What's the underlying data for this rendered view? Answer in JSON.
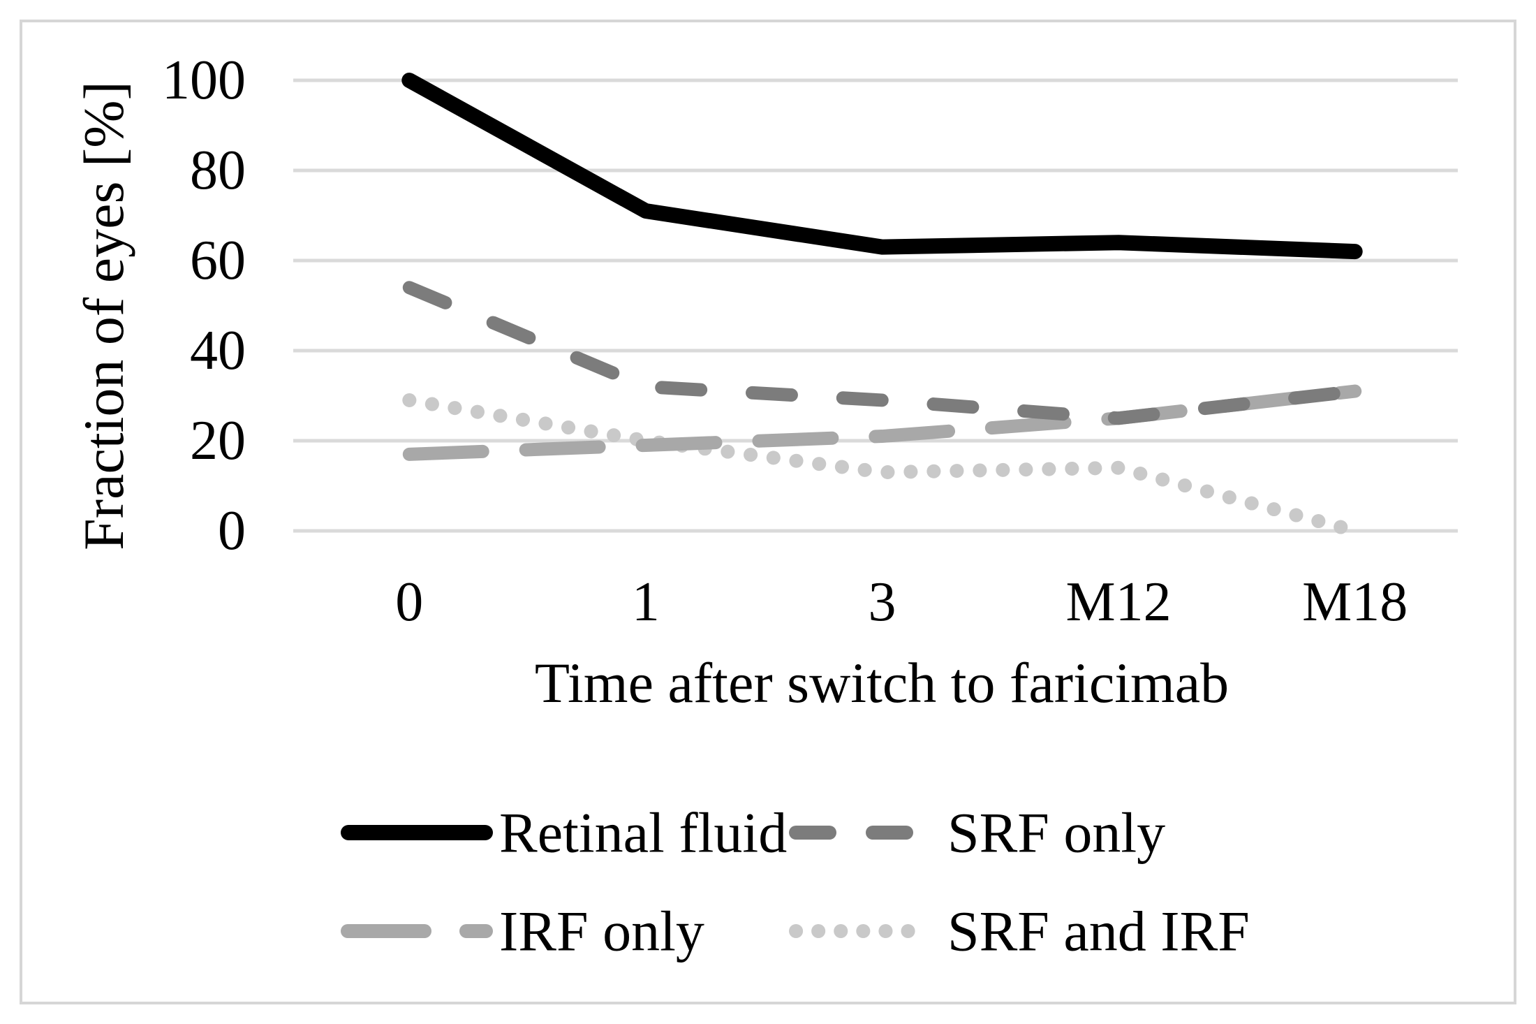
{
  "figure": {
    "background": "#ffffff",
    "border_color": "#d6d6d6",
    "gridline_color": "#dadada"
  },
  "chart_data": {
    "type": "line",
    "title": "",
    "xlabel": "Time after switch to faricimab",
    "ylabel": "Fraction of eyes [%]",
    "categories": [
      "0",
      "1",
      "3",
      "M12",
      "M18"
    ],
    "y_ticks": [
      100,
      80,
      60,
      40,
      20,
      0
    ],
    "ylim": [
      0,
      100
    ],
    "grid": "horizontal",
    "legend_position": "bottom",
    "series": [
      {
        "name": "Retinal fluid",
        "values": [
          100,
          71,
          63,
          64,
          62
        ],
        "color": "#000000",
        "style": "solid"
      },
      {
        "name": "SRF only",
        "values": [
          54,
          32,
          29,
          25,
          31
        ],
        "color": "#7c7c7c",
        "style": "dashed"
      },
      {
        "name": "IRF only",
        "values": [
          17,
          19,
          21,
          25,
          31
        ],
        "color": "#a8a8a8",
        "style": "long-dash"
      },
      {
        "name": "SRF and IRF",
        "values": [
          29,
          20,
          13,
          14,
          0
        ],
        "color": "#c9c9c9",
        "style": "dotted"
      }
    ]
  }
}
